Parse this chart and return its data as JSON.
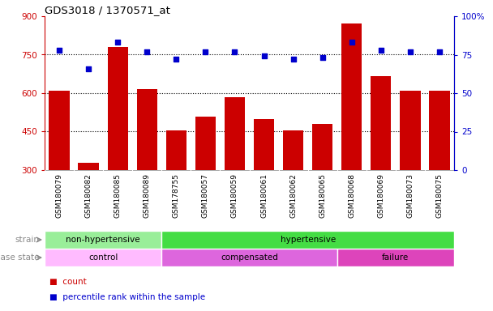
{
  "title": "GDS3018 / 1370571_at",
  "samples": [
    "GSM180079",
    "GSM180082",
    "GSM180085",
    "GSM180089",
    "GSM178755",
    "GSM180057",
    "GSM180059",
    "GSM180061",
    "GSM180062",
    "GSM180065",
    "GSM180068",
    "GSM180069",
    "GSM180073",
    "GSM180075"
  ],
  "counts": [
    610,
    330,
    780,
    615,
    455,
    510,
    585,
    500,
    455,
    480,
    870,
    665,
    610,
    610
  ],
  "percentiles": [
    78,
    66,
    83,
    77,
    72,
    77,
    77,
    74,
    72,
    73,
    83,
    78,
    77,
    77
  ],
  "ylim_left": [
    300,
    900
  ],
  "ylim_right": [
    0,
    100
  ],
  "yticks_left": [
    300,
    450,
    600,
    750,
    900
  ],
  "yticks_right": [
    0,
    25,
    50,
    75,
    100
  ],
  "bar_color": "#cc0000",
  "dot_color": "#0000cc",
  "hlines": [
    450,
    600,
    750
  ],
  "strain_groups": [
    {
      "label": "non-hypertensive",
      "start": 0,
      "end": 4,
      "color": "#99ee99"
    },
    {
      "label": "hypertensive",
      "start": 4,
      "end": 14,
      "color": "#44dd44"
    }
  ],
  "disease_groups": [
    {
      "label": "control",
      "start": 0,
      "end": 4,
      "color": "#ffbbff"
    },
    {
      "label": "compensated",
      "start": 4,
      "end": 10,
      "color": "#dd66dd"
    },
    {
      "label": "failure",
      "start": 10,
      "end": 14,
      "color": "#dd44bb"
    }
  ],
  "legend_items": [
    {
      "label": "count",
      "color": "#cc0000"
    },
    {
      "label": "percentile rank within the sample",
      "color": "#0000cc"
    }
  ],
  "xtick_bg_color": "#cccccc",
  "bg_color": "#ffffff",
  "spine_color": "#000000"
}
